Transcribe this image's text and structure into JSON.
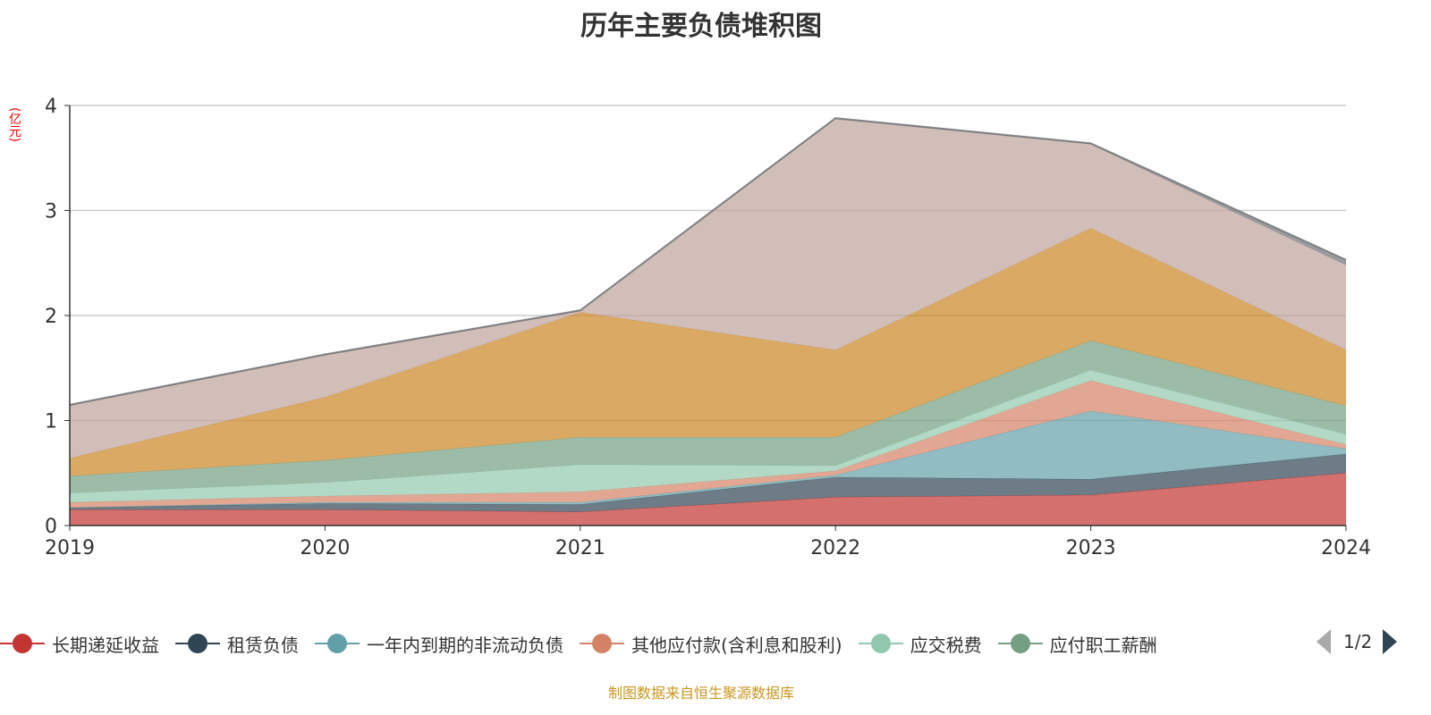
{
  "chart_data": {
    "type": "area",
    "stacked": true,
    "title": "历年主要负债堆积图",
    "ylabel": "(亿元)",
    "x": [
      "2019",
      "2020",
      "2021",
      "2022",
      "2023",
      "2024"
    ],
    "ylim": [
      0,
      4
    ],
    "yticks": [
      "0",
      "1",
      "2",
      "3",
      "4"
    ],
    "grid": true,
    "legend_placement": "bottom",
    "series": [
      {
        "name": "长期递延收益",
        "color": "#c23531",
        "values": [
          0.15,
          0.15,
          0.13,
          0.27,
          0.29,
          0.5
        ]
      },
      {
        "name": "租赁负债",
        "color": "#2f4554",
        "values": [
          0.02,
          0.06,
          0.07,
          0.19,
          0.15,
          0.18
        ]
      },
      {
        "name": "一年内到期的非流动负债",
        "color": "#61a0a8",
        "values": [
          0.0,
          0.01,
          0.02,
          0.02,
          0.65,
          0.05
        ]
      },
      {
        "name": "其他应付款(含利息和股利)",
        "color": "#d48265",
        "values": [
          0.05,
          0.06,
          0.1,
          0.04,
          0.29,
          0.04
        ]
      },
      {
        "name": "应交税费",
        "color": "#91c7ae",
        "values": [
          0.09,
          0.13,
          0.26,
          0.05,
          0.1,
          0.1
        ]
      },
      {
        "name": "应付职工薪酬",
        "color": "#749f83",
        "values": [
          0.16,
          0.21,
          0.26,
          0.27,
          0.28,
          0.27
        ]
      },
      {
        "color": "#ca8622",
        "values": [
          0.17,
          0.6,
          1.19,
          0.83,
          1.07,
          0.53
        ]
      },
      {
        "color": "#bda29a",
        "values": [
          0.5,
          0.4,
          0.01,
          2.2,
          0.8,
          0.81
        ]
      },
      {
        "color": "#6e7074",
        "values": [
          0.01,
          0.01,
          0.01,
          0.01,
          0.01,
          0.05
        ]
      }
    ]
  },
  "legend": {
    "visible_items": [
      "长期递延收益",
      "租赁负债",
      "一年内到期的非流动负债",
      "其他应付款(含利息和股利)",
      "应交税费",
      "应付职工薪酬"
    ],
    "page": "1/2"
  },
  "footer": "制图数据来自恒生聚源数据库"
}
